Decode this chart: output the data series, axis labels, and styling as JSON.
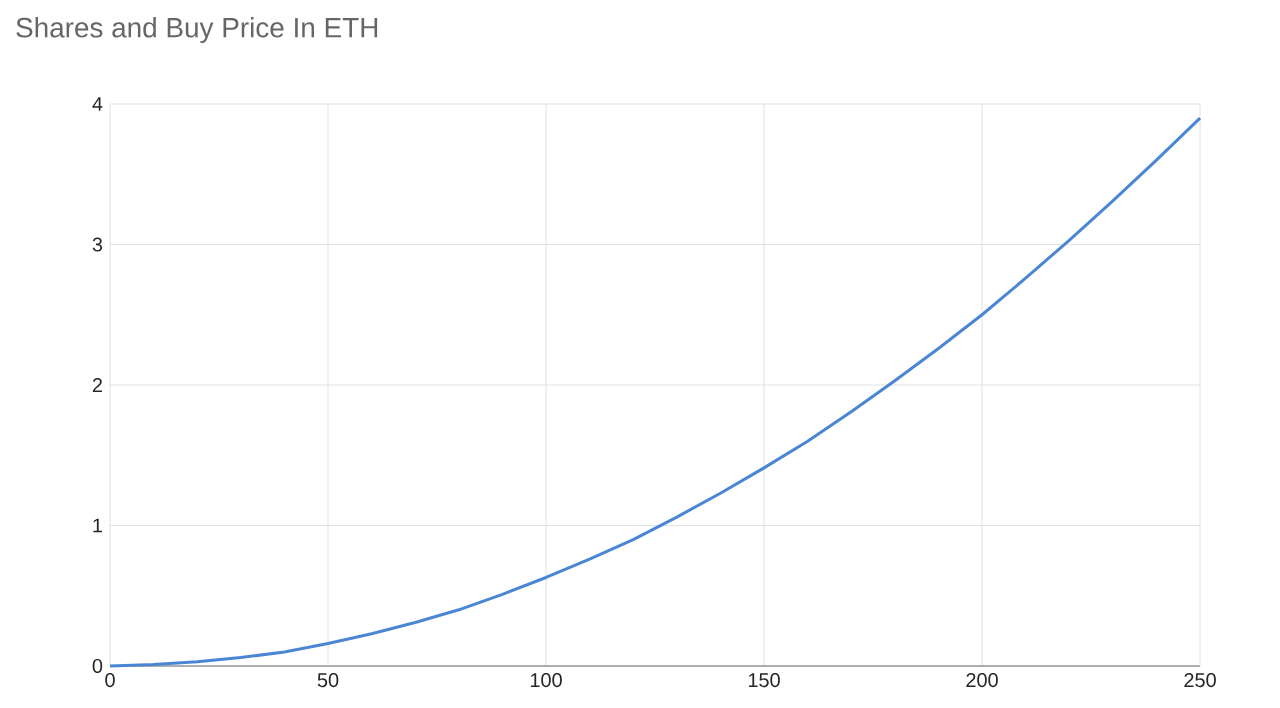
{
  "chart_data": {
    "type": "line",
    "title": "Shares and Buy Price In ETH",
    "x": [
      0,
      10,
      20,
      30,
      40,
      50,
      60,
      70,
      80,
      90,
      100,
      110,
      120,
      130,
      140,
      150,
      160,
      170,
      180,
      190,
      200,
      210,
      220,
      230,
      240,
      250
    ],
    "series": [
      {
        "color": "#4a86d4",
        "values": [
          0,
          0.01,
          0.03,
          0.06,
          0.1,
          0.16,
          0.23,
          0.31,
          0.4,
          0.51,
          0.63,
          0.76,
          0.9,
          1.06,
          1.23,
          1.41,
          1.6,
          1.81,
          2.03,
          2.26,
          2.5,
          2.76,
          3.03,
          3.31,
          3.6,
          3.9
        ]
      }
    ],
    "xlim": [
      0,
      250
    ],
    "xticks": [
      0,
      50,
      100,
      150,
      200,
      250
    ],
    "ylim": [
      0,
      4
    ],
    "yticks": [
      0,
      1,
      2,
      3,
      4
    ],
    "grid": true,
    "marker": "none",
    "line_style": "solid"
  }
}
